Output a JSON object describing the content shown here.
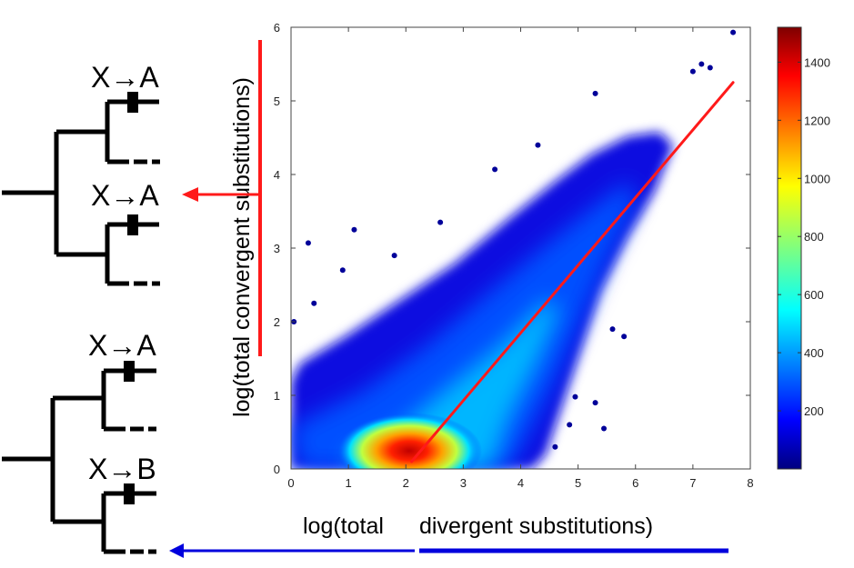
{
  "trees": {
    "top": {
      "upper_event": "X→A",
      "lower_event": "X→A"
    },
    "bottom": {
      "upper_event": "X→A",
      "lower_event": "X→B"
    }
  },
  "colors": {
    "regression_line": "#ff1a1a",
    "convergent_arrow": "#ff1a1a",
    "divergent_arrow": "#0000dd",
    "point_color": "#000099"
  },
  "chart_data": {
    "type": "heatmap",
    "title": "",
    "xlabel_part1": "log(total",
    "xlabel_part2": "divergent substitutions)",
    "ylabel": "log(total convergent substitutions)",
    "xlim": [
      0,
      8
    ],
    "ylim": [
      0,
      6
    ],
    "x_ticks": [
      "0",
      "1",
      "2",
      "3",
      "4",
      "5",
      "6",
      "7",
      "8"
    ],
    "y_ticks": [
      "0",
      "1",
      "2",
      "3",
      "4",
      "5",
      "6"
    ],
    "colorbar": {
      "colormap": "jet",
      "min": 0,
      "max": 1520,
      "ticks": [
        "200",
        "400",
        "600",
        "800",
        "1000",
        "1200",
        "1400"
      ]
    },
    "density_hotspot": {
      "x": 2.1,
      "y": 0.1,
      "peak_count": 1500
    },
    "regression_line": {
      "x": [
        2.1,
        7.7
      ],
      "y": [
        0.1,
        5.25
      ]
    },
    "outlier_points": [
      {
        "x": 0.05,
        "y": 2.0
      },
      {
        "x": 0.3,
        "y": 3.07
      },
      {
        "x": 1.1,
        "y": 3.25
      },
      {
        "x": 0.4,
        "y": 2.25
      },
      {
        "x": 0.9,
        "y": 2.7
      },
      {
        "x": 1.8,
        "y": 2.9
      },
      {
        "x": 2.6,
        "y": 3.35
      },
      {
        "x": 3.55,
        "y": 4.07
      },
      {
        "x": 4.3,
        "y": 4.4
      },
      {
        "x": 5.3,
        "y": 5.1
      },
      {
        "x": 7.0,
        "y": 5.4
      },
      {
        "x": 7.3,
        "y": 5.45
      },
      {
        "x": 7.15,
        "y": 5.5
      },
      {
        "x": 7.7,
        "y": 5.93
      },
      {
        "x": 5.45,
        "y": 0.55
      },
      {
        "x": 4.95,
        "y": 0.98
      },
      {
        "x": 5.3,
        "y": 0.9
      },
      {
        "x": 4.6,
        "y": 0.3
      },
      {
        "x": 4.85,
        "y": 0.6
      },
      {
        "x": 5.6,
        "y": 1.9
      },
      {
        "x": 5.8,
        "y": 1.8
      }
    ]
  }
}
